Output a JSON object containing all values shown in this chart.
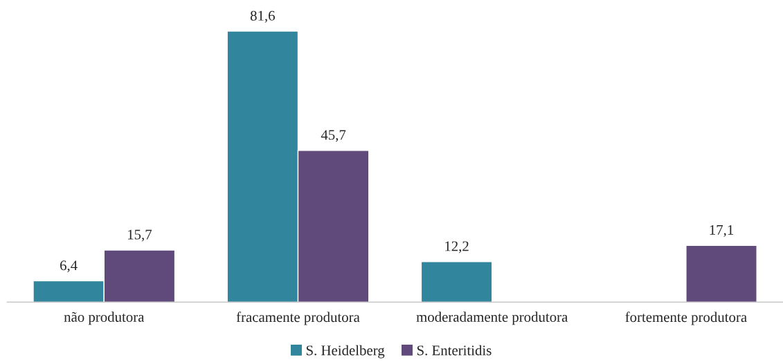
{
  "chart_data": {
    "type": "bar",
    "categories": [
      "não produtora",
      "fracamente produtora",
      "moderadamente produtora",
      "fortemente produtora"
    ],
    "series": [
      {
        "name": "S. Heidelberg",
        "color": "#31859c",
        "values": [
          6.4,
          81.6,
          12.2,
          null
        ],
        "value_labels": [
          "6,4",
          "81,6",
          "12,2",
          null
        ]
      },
      {
        "name": "S. Enteritidis",
        "color": "#604a7b",
        "values": [
          15.7,
          45.7,
          null,
          17.1
        ],
        "value_labels": [
          "15,7",
          "45,7",
          null,
          "17,1"
        ]
      }
    ],
    "legend": "bottom",
    "grid": false,
    "tick_labels": "x"
  }
}
